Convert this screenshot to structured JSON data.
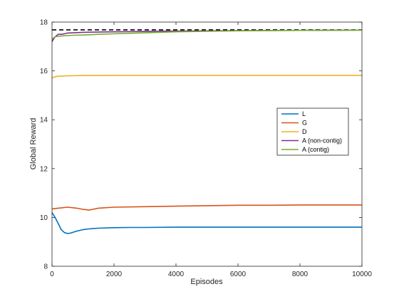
{
  "chart_data": {
    "type": "line",
    "title": "",
    "xlabel": "Episodes",
    "ylabel": "Global Reward",
    "xlim": [
      0,
      10000
    ],
    "ylim": [
      8,
      18
    ],
    "xticks": [
      "0",
      "2000",
      "4000",
      "6000",
      "8000",
      "10000"
    ],
    "yticks": [
      "8",
      "10",
      "12",
      "14",
      "16",
      "18"
    ],
    "grid": false,
    "legend_position": "center-right",
    "reference_line": {
      "y": 17.68,
      "style": "dashed",
      "color": "#000000"
    },
    "series": [
      {
        "name": "L",
        "color": "#0072BD",
        "x": [
          0,
          50,
          100,
          200,
          300,
          400,
          500,
          600,
          800,
          1000,
          1200,
          1500,
          2000,
          2500,
          3000,
          4000,
          5000,
          6000,
          7000,
          8000,
          9000,
          10000
        ],
        "values": [
          10.2,
          10.1,
          10.0,
          9.75,
          9.5,
          9.38,
          9.34,
          9.36,
          9.44,
          9.5,
          9.53,
          9.56,
          9.58,
          9.59,
          9.59,
          9.6,
          9.6,
          9.6,
          9.6,
          9.6,
          9.6,
          9.6
        ]
      },
      {
        "name": "G",
        "color": "#D95319",
        "x": [
          0,
          200,
          500,
          800,
          1000,
          1200,
          1500,
          2000,
          3000,
          4000,
          5000,
          6000,
          7000,
          8000,
          9000,
          10000
        ],
        "values": [
          10.35,
          10.38,
          10.42,
          10.38,
          10.33,
          10.3,
          10.38,
          10.42,
          10.44,
          10.46,
          10.48,
          10.5,
          10.5,
          10.51,
          10.51,
          10.51
        ]
      },
      {
        "name": "D",
        "color": "#EDB120",
        "x": [
          0,
          50,
          100,
          200,
          500,
          1000,
          2000,
          4000,
          6000,
          8000,
          10000
        ],
        "values": [
          15.7,
          15.74,
          15.76,
          15.78,
          15.8,
          15.81,
          15.82,
          15.82,
          15.82,
          15.82,
          15.82
        ]
      },
      {
        "name": "A (non-contig)",
        "color": "#7E2F8E",
        "x": [
          0,
          50,
          100,
          200,
          300,
          400,
          500,
          700,
          1000,
          2000,
          4000,
          6000,
          8000,
          10000
        ],
        "values": [
          17.2,
          17.3,
          17.4,
          17.5,
          17.5,
          17.52,
          17.55,
          17.56,
          17.58,
          17.6,
          17.63,
          17.65,
          17.66,
          17.67
        ]
      },
      {
        "name": "A (contig)",
        "color": "#77AC30",
        "x": [
          0,
          50,
          100,
          200,
          400,
          700,
          1000,
          1500,
          2000,
          3000,
          4000,
          5000,
          6000,
          8000,
          10000
        ],
        "values": [
          17.3,
          17.35,
          17.4,
          17.42,
          17.44,
          17.46,
          17.47,
          17.5,
          17.52,
          17.56,
          17.6,
          17.62,
          17.64,
          17.66,
          17.67
        ]
      }
    ]
  }
}
